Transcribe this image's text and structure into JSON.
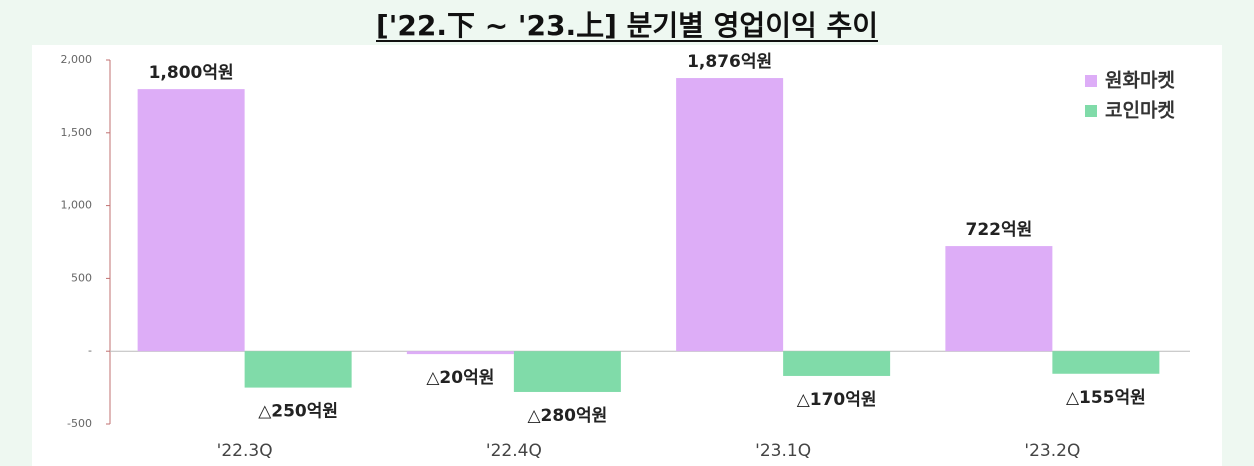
{
  "chart_data": {
    "type": "bar",
    "title": "['22.下 ~ '23.上] 분기별 영업이익 추이",
    "categories": [
      "'22.3Q",
      "'22.4Q",
      "'23.1Q",
      "'23.2Q"
    ],
    "series": [
      {
        "name": "원화마켓",
        "color": "#ddadf7",
        "values": [
          1800,
          -20,
          1876,
          722
        ],
        "value_labels": [
          "1,800억원",
          "△20억원",
          "1,876억원",
          "722억원"
        ]
      },
      {
        "name": "코인마켓",
        "color": "#80dba9",
        "values": [
          -250,
          -280,
          -170,
          -155
        ],
        "value_labels": [
          "△250억원",
          "△280억원",
          "△170억원",
          "△155억원"
        ]
      }
    ],
    "ylim": [
      -500,
      2000
    ],
    "yticks": [
      -500,
      {
        "value": 0,
        "label": "-"
      },
      500,
      {
        "value": 1000,
        "label": "1,000"
      },
      {
        "value": 1500,
        "label": "1,500"
      },
      {
        "value": 2000,
        "label": "2,000"
      }
    ],
    "grid": false,
    "legend": "top-right"
  }
}
